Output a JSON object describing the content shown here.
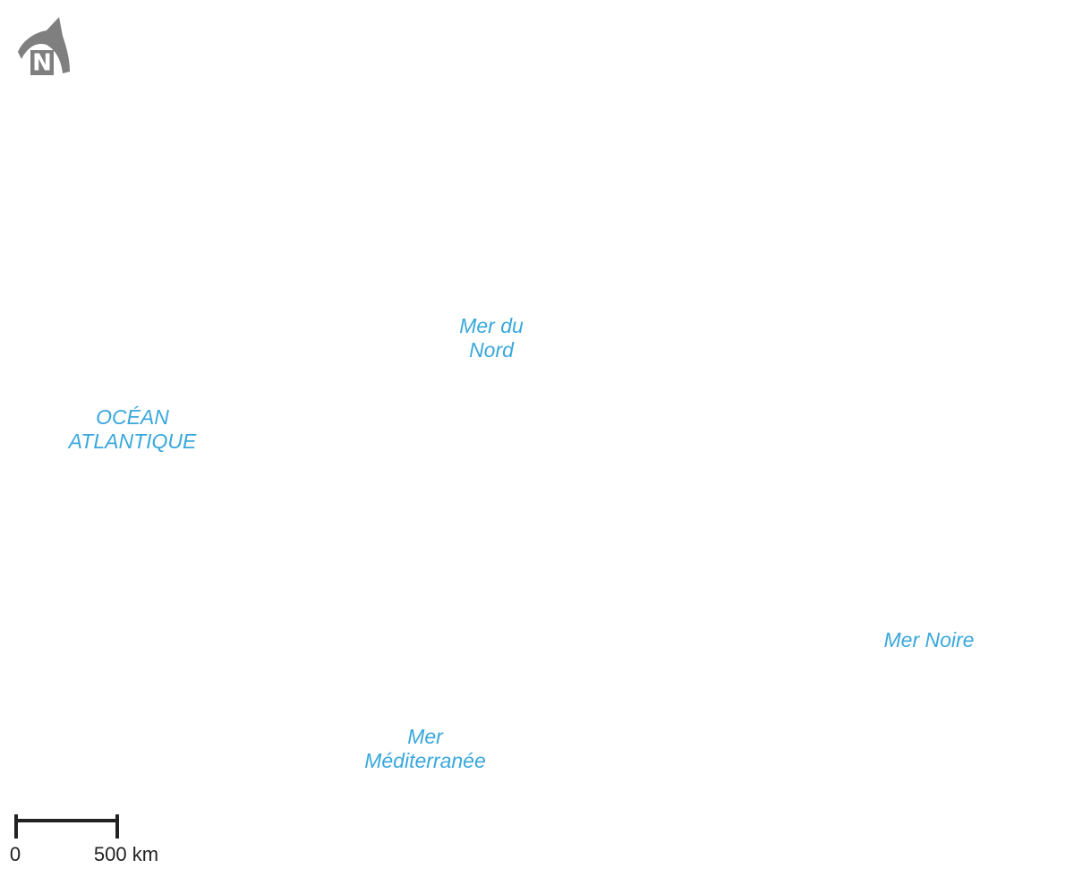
{
  "north_arrow": {
    "label": "N"
  },
  "seas": [
    {
      "lines": [
        "Mer du",
        "Nord"
      ]
    },
    {
      "lines": [
        "OCÉAN",
        "ATLANTIQUE"
      ]
    },
    {
      "lines": [
        "Mer Noire"
      ]
    },
    {
      "lines": [
        "Mer",
        "Méditerranée"
      ]
    }
  ],
  "scale_bar": {
    "labels": [
      "0",
      "500 km"
    ]
  }
}
